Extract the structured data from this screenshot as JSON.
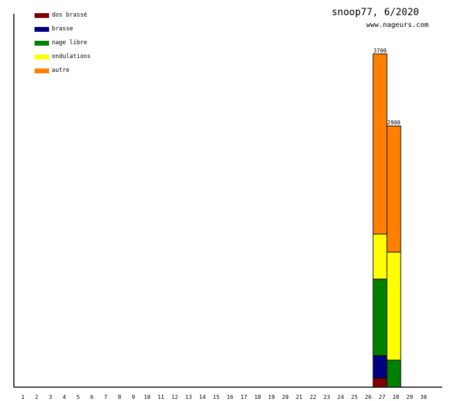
{
  "header": {
    "title": "snoop77, 6/2020",
    "site": "www.nageurs.com"
  },
  "chart_data": {
    "type": "bar",
    "stacked": true,
    "title": "snoop77, 6/2020",
    "xlabel": "",
    "ylabel": "",
    "categories": [
      "1",
      "2",
      "3",
      "4",
      "5",
      "6",
      "7",
      "8",
      "9",
      "10",
      "11",
      "12",
      "13",
      "14",
      "15",
      "16",
      "17",
      "18",
      "19",
      "20",
      "21",
      "22",
      "23",
      "24",
      "25",
      "26",
      "27",
      "28",
      "29",
      "30"
    ],
    "ylim": [
      0,
      3700
    ],
    "legend_position": "top-left",
    "series": [
      {
        "name": "dos brassé",
        "color": "#800000",
        "values": {
          "27": 100
        }
      },
      {
        "name": "brasse",
        "color": "#000080",
        "values": {
          "27": 250
        }
      },
      {
        "name": "nage libre",
        "color": "#008000",
        "values": {
          "27": 850,
          "28": 300
        }
      },
      {
        "name": "ondulations",
        "color": "#ffff00",
        "values": {
          "27": 500,
          "28": 1200
        }
      },
      {
        "name": "autre",
        "color": "#ff8000",
        "values": {
          "27": 2000,
          "28": 1400
        }
      }
    ],
    "totals": {
      "27": "3700",
      "28": "2900"
    }
  }
}
